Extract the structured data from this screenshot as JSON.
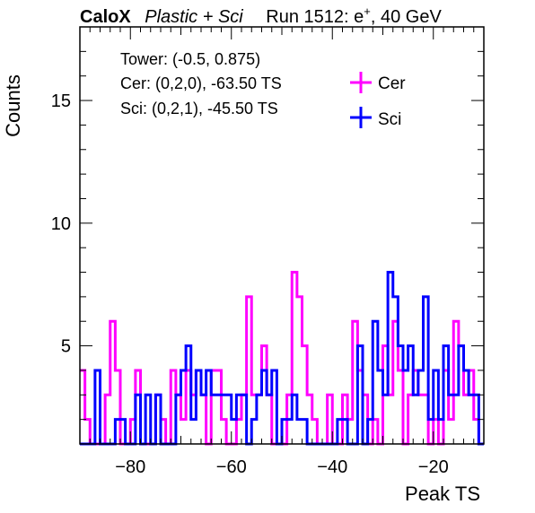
{
  "header": {
    "brand": "CaloX",
    "subtitle": "Plastic + Sci",
    "run": "Run 1512: e",
    "sup": "+",
    "energy": ", 40 GeV"
  },
  "info": {
    "tower": "Tower: (-0.5, 0.875)",
    "cer": "Cer: (0,2,0), -63.50 TS",
    "sci": "Sci: (0,2,1), -45.50 TS"
  },
  "chart_data": {
    "type": "histogram",
    "xlabel": "Peak TS",
    "ylabel": "Counts",
    "xlim": [
      -90,
      -10
    ],
    "ylim": [
      1,
      18
    ],
    "x_ticks": [
      -80,
      -60,
      -40,
      -20
    ],
    "y_ticks": [
      5,
      10,
      15
    ],
    "bin_width": 1,
    "bin_edges_start": -90,
    "series": [
      {
        "name": "Cer",
        "color": "#ff00ff",
        "counts": [
          4,
          2,
          1,
          1,
          1,
          3,
          6,
          4,
          1,
          1,
          2,
          4,
          1,
          1,
          1,
          3,
          2,
          1,
          4,
          3,
          2,
          4,
          3,
          4,
          3,
          1,
          4,
          4,
          2,
          1,
          1,
          2,
          3,
          7,
          3,
          3,
          5,
          3,
          1,
          1,
          1,
          3,
          8,
          7,
          5,
          3,
          2,
          1,
          1,
          3,
          1,
          1,
          3,
          2,
          6,
          4,
          3,
          1,
          2,
          1,
          5,
          3,
          6,
          4,
          1,
          3,
          4,
          3,
          3,
          1,
          2,
          1,
          4,
          2,
          6,
          5,
          3,
          4,
          2,
          1
        ]
      },
      {
        "name": "Sci",
        "color": "#0000ff",
        "counts": [
          1,
          1,
          1,
          4,
          1,
          1,
          1,
          2,
          2,
          1,
          1,
          3,
          1,
          3,
          1,
          3,
          1,
          1,
          1,
          3,
          4,
          5,
          2,
          4,
          3,
          4,
          3,
          3,
          3,
          3,
          2,
          3,
          3,
          1,
          2,
          3,
          4,
          3,
          4,
          1,
          2,
          2,
          3,
          2,
          2,
          1,
          1,
          1,
          1,
          1,
          1,
          2,
          2,
          1,
          1,
          5,
          1,
          2,
          6,
          4,
          3,
          8,
          7,
          5,
          4,
          5,
          3,
          4,
          7,
          2,
          4,
          2,
          5,
          3,
          3,
          5,
          4,
          3,
          3,
          1
        ]
      }
    ]
  }
}
